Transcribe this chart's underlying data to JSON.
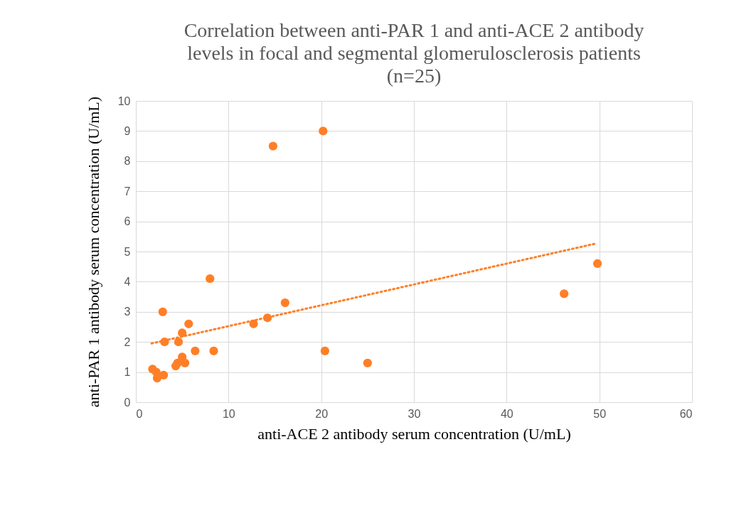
{
  "chart_data": {
    "type": "scatter",
    "title": "Correlation between anti-PAR 1 and anti-ACE 2 antibody\nlevels in focal and segmental glomerulosclerosis patients\n(n=25)",
    "xlabel": "anti-ACE 2 antibody serum concentration (U/mL)",
    "ylabel": "anti-PAR 1 antibody serum concentration (U/mL)",
    "series": [
      {
        "color": "#ff7f27",
        "marker": "circle",
        "x": [
          1.8,
          2.2,
          2.3,
          3.0,
          2.9,
          3.1,
          4.3,
          4.5,
          4.6,
          5.0,
          5.0,
          5.3,
          5.7,
          6.4,
          8.0,
          8.4,
          12.7,
          14.2,
          14.8,
          16.1,
          20.2,
          20.4,
          25.0,
          46.2,
          49.8
        ],
        "values": [
          1.1,
          1.0,
          0.8,
          0.9,
          3.0,
          2.0,
          1.2,
          1.3,
          2.0,
          2.3,
          1.5,
          1.3,
          2.6,
          1.7,
          4.1,
          1.7,
          2.6,
          2.8,
          8.5,
          3.3,
          9.0,
          1.7,
          1.3,
          3.6,
          4.6
        ]
      },
      {
        "type": "line",
        "color": "#ff7f27",
        "line_style": "dotted",
        "x": [
          1.7,
          49.7
        ],
        "values": [
          1.95,
          5.27
        ]
      }
    ],
    "xlim": [
      0,
      60
    ],
    "xticks": [
      0,
      10,
      20,
      30,
      40,
      50,
      60
    ],
    "ylim": [
      0,
      10
    ],
    "yticks": [
      0,
      1,
      2,
      3,
      4,
      5,
      6,
      7,
      8,
      9,
      10
    ],
    "grid": true
  }
}
